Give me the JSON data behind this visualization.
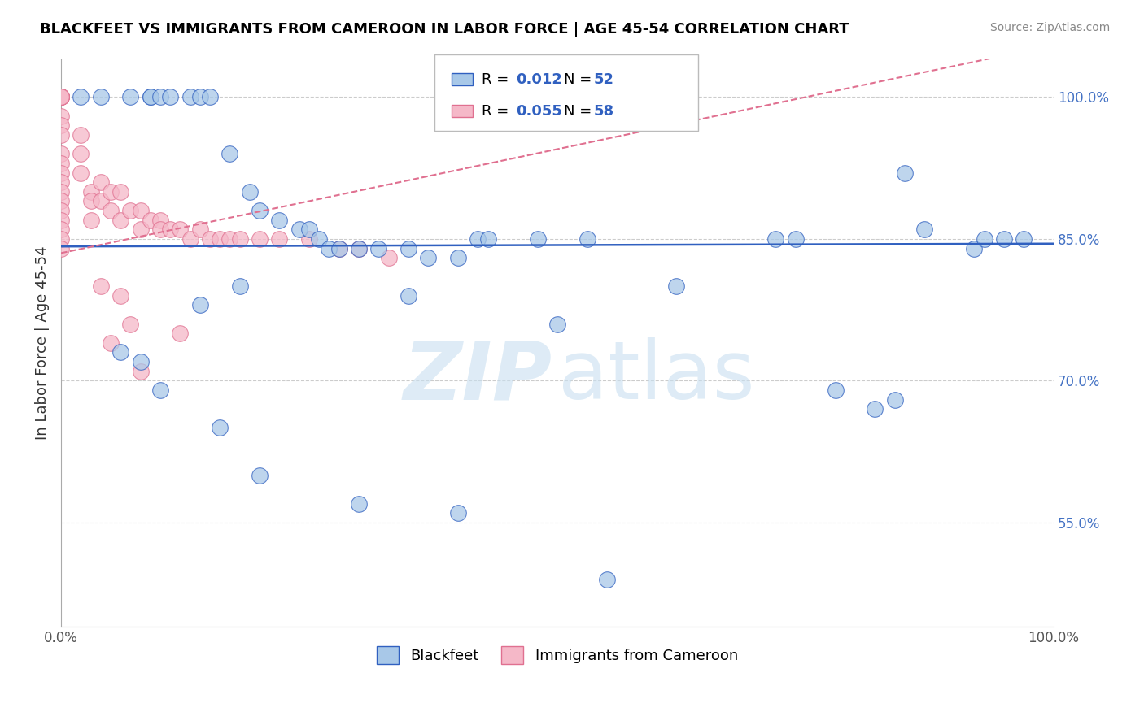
{
  "title": "BLACKFEET VS IMMIGRANTS FROM CAMEROON IN LABOR FORCE | AGE 45-54 CORRELATION CHART",
  "source": "Source: ZipAtlas.com",
  "ylabel": "In Labor Force | Age 45-54",
  "xlim": [
    0.0,
    1.0
  ],
  "ylim": [
    0.44,
    1.04
  ],
  "yticks": [
    0.55,
    0.7,
    0.85,
    1.0
  ],
  "ytick_labels": [
    "55.0%",
    "70.0%",
    "85.0%",
    "100.0%"
  ],
  "color_blue": "#a8c8e8",
  "color_pink": "#f5b8c8",
  "color_blue_line": "#3060c0",
  "color_pink_line": "#e07090",
  "blue_line_slope": 0.003,
  "blue_line_intercept": 0.842,
  "pink_line_slope": 0.22,
  "pink_line_intercept": 0.835,
  "blue_x": [
    0.02,
    0.04,
    0.07,
    0.09,
    0.09,
    0.1,
    0.11,
    0.13,
    0.14,
    0.15,
    0.17,
    0.19,
    0.2,
    0.22,
    0.24,
    0.25,
    0.26,
    0.27,
    0.28,
    0.3,
    0.32,
    0.35,
    0.37,
    0.4,
    0.42,
    0.43,
    0.48,
    0.53,
    0.72,
    0.74,
    0.85,
    0.87,
    0.92,
    0.93,
    0.95,
    0.97,
    0.14,
    0.18,
    0.35,
    0.5,
    0.62,
    0.78,
    0.82,
    0.84,
    0.06,
    0.08,
    0.1,
    0.16,
    0.2,
    0.3,
    0.4,
    0.55
  ],
  "blue_y": [
    1.0,
    1.0,
    1.0,
    1.0,
    1.0,
    1.0,
    1.0,
    1.0,
    1.0,
    1.0,
    0.94,
    0.9,
    0.88,
    0.87,
    0.86,
    0.86,
    0.85,
    0.84,
    0.84,
    0.84,
    0.84,
    0.84,
    0.83,
    0.83,
    0.85,
    0.85,
    0.85,
    0.85,
    0.85,
    0.85,
    0.92,
    0.86,
    0.84,
    0.85,
    0.85,
    0.85,
    0.78,
    0.8,
    0.79,
    0.76,
    0.8,
    0.69,
    0.67,
    0.68,
    0.73,
    0.72,
    0.69,
    0.65,
    0.6,
    0.57,
    0.56,
    0.49
  ],
  "pink_x": [
    0.0,
    0.0,
    0.0,
    0.0,
    0.0,
    0.0,
    0.0,
    0.0,
    0.0,
    0.0,
    0.0,
    0.0,
    0.0,
    0.0,
    0.0,
    0.0,
    0.0,
    0.0,
    0.0,
    0.0,
    0.02,
    0.02,
    0.02,
    0.03,
    0.03,
    0.03,
    0.04,
    0.04,
    0.05,
    0.05,
    0.06,
    0.06,
    0.07,
    0.08,
    0.08,
    0.09,
    0.1,
    0.1,
    0.11,
    0.12,
    0.13,
    0.14,
    0.15,
    0.16,
    0.17,
    0.18,
    0.2,
    0.22,
    0.25,
    0.28,
    0.3,
    0.33,
    0.05,
    0.08,
    0.12,
    0.04,
    0.06,
    0.07
  ],
  "pink_y": [
    1.0,
    1.0,
    1.0,
    1.0,
    1.0,
    1.0,
    0.98,
    0.97,
    0.96,
    0.94,
    0.93,
    0.92,
    0.91,
    0.9,
    0.89,
    0.88,
    0.87,
    0.86,
    0.85,
    0.84,
    0.96,
    0.94,
    0.92,
    0.9,
    0.89,
    0.87,
    0.91,
    0.89,
    0.9,
    0.88,
    0.9,
    0.87,
    0.88,
    0.88,
    0.86,
    0.87,
    0.87,
    0.86,
    0.86,
    0.86,
    0.85,
    0.86,
    0.85,
    0.85,
    0.85,
    0.85,
    0.85,
    0.85,
    0.85,
    0.84,
    0.84,
    0.83,
    0.74,
    0.71,
    0.75,
    0.8,
    0.79,
    0.76
  ]
}
